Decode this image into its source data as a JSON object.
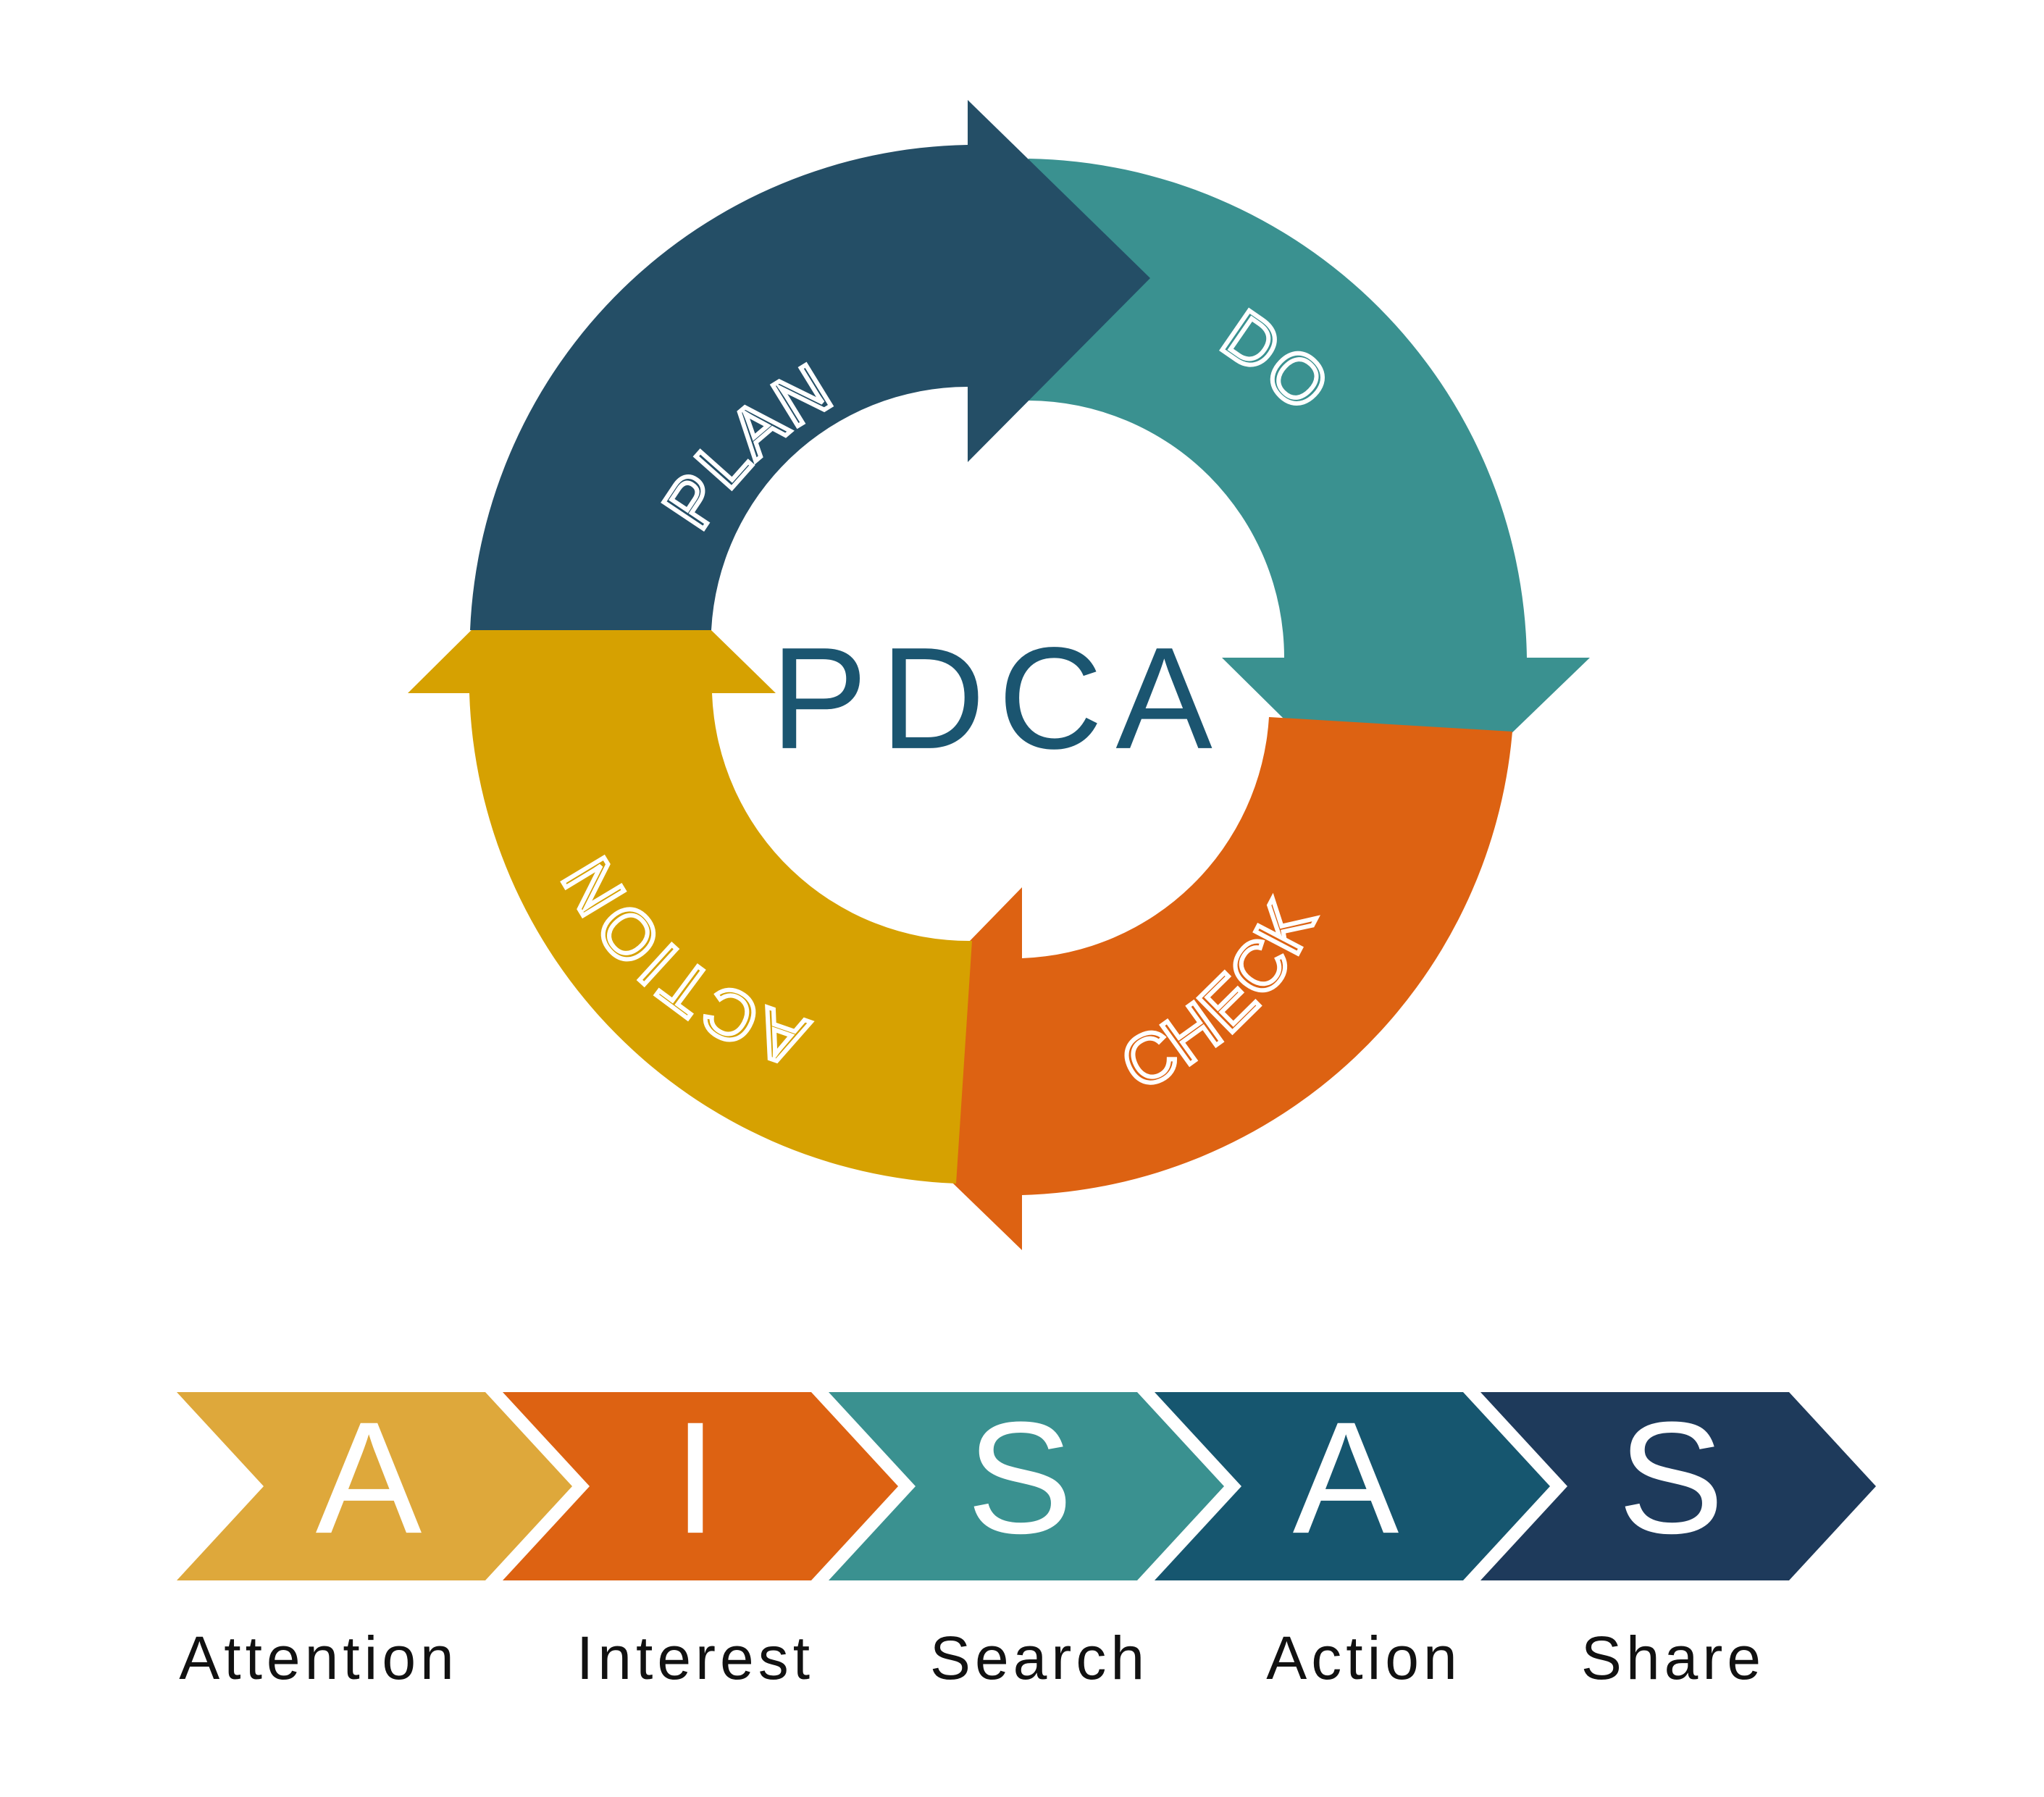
{
  "pdca": {
    "center_label": "PDCA",
    "center_color": "#1b5570",
    "segments": [
      {
        "key": "plan",
        "label": "PLAN",
        "color": "#244e66"
      },
      {
        "key": "do",
        "label": "DO",
        "color": "#3a9190"
      },
      {
        "key": "check",
        "label": "CHECK",
        "color": "#dd6212"
      },
      {
        "key": "action",
        "label": "ACTION",
        "color": "#d6a101"
      }
    ]
  },
  "aisas": {
    "steps": [
      {
        "letter": "A",
        "label": "Attention",
        "color": "#dea83b"
      },
      {
        "letter": "I",
        "label": "Interest",
        "color": "#dd6212"
      },
      {
        "letter": "S",
        "label": "Search",
        "color": "#3a9190"
      },
      {
        "letter": "A",
        "label": "Action",
        "color": "#16566f"
      },
      {
        "letter": "S",
        "label": "Share",
        "color": "#1e3a5b"
      }
    ]
  }
}
